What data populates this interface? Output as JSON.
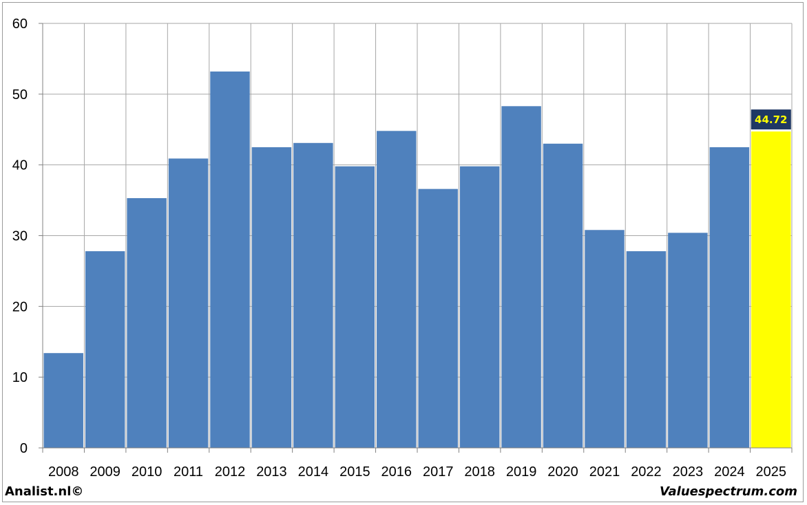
{
  "chart_data": {
    "type": "bar",
    "categories": [
      "2008",
      "2009",
      "2010",
      "2011",
      "2012",
      "2013",
      "2014",
      "2015",
      "2016",
      "2017",
      "2018",
      "2019",
      "2020",
      "2021",
      "2022",
      "2023",
      "2024",
      "2025"
    ],
    "values": [
      13.4,
      27.8,
      35.3,
      40.9,
      53.2,
      42.5,
      43.1,
      39.8,
      44.8,
      36.6,
      39.8,
      48.3,
      43.0,
      30.8,
      27.8,
      30.4,
      42.5,
      44.72
    ],
    "title": "",
    "xlabel": "",
    "ylabel": "",
    "ylim": [
      0,
      60
    ],
    "yticks": [
      0,
      10,
      20,
      30,
      40,
      50,
      60
    ],
    "grid": true,
    "highlight": {
      "category": "2025",
      "label": "44.72",
      "color": "#ffff00",
      "label_bg": "#1f3864",
      "label_color": "#ffff00"
    },
    "bar_color": "#4f81bd",
    "gridline_color": "#a6a6a6"
  },
  "footer": {
    "left": "Analist.nl©",
    "right": "Valuespectrum.com"
  }
}
